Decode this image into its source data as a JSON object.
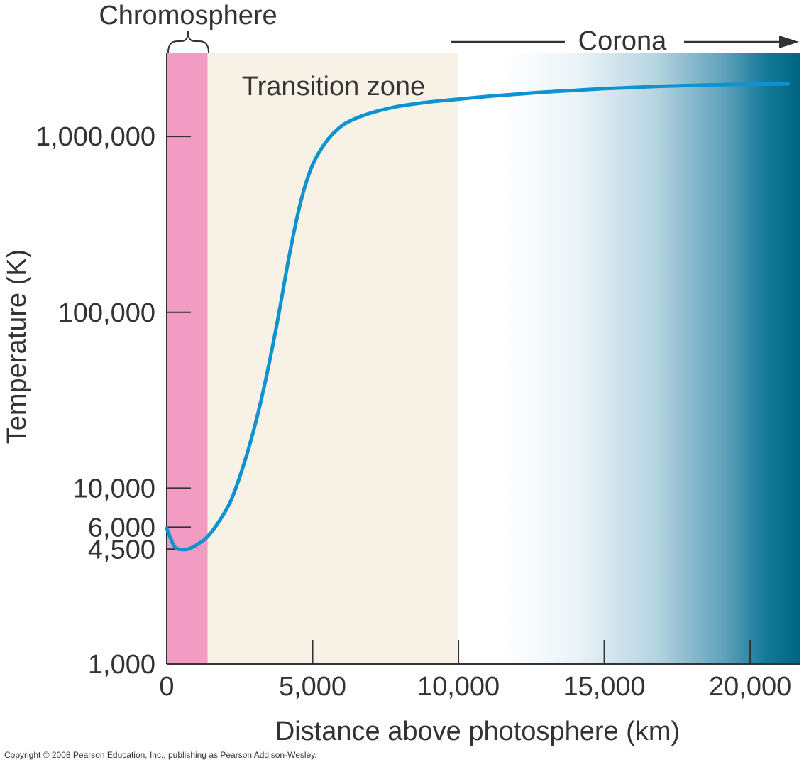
{
  "chart_data": {
    "type": "line",
    "xlabel": "Distance above photosphere (km)",
    "ylabel": "Temperature (K)",
    "y_scale": "log",
    "xlim": [
      0,
      21700
    ],
    "ylim": [
      1000,
      3000000
    ],
    "x_ticks": [
      {
        "value": 0,
        "label": "0"
      },
      {
        "value": 5000,
        "label": "5,000"
      },
      {
        "value": 10000,
        "label": "10,000"
      },
      {
        "value": 15000,
        "label": "15,000"
      },
      {
        "value": 20000,
        "label": "20,000"
      }
    ],
    "y_ticks": [
      {
        "value": 1000,
        "label": "1,000"
      },
      {
        "value": 4500,
        "label": "4,500"
      },
      {
        "value": 6000,
        "label": "6,000"
      },
      {
        "value": 10000,
        "label": "10,000"
      },
      {
        "value": 100000,
        "label": "100,000"
      },
      {
        "value": 1000000,
        "label": "1,000,000"
      }
    ],
    "regions": [
      {
        "name": "Chromosphere",
        "x_start": 0,
        "x_end": 1400,
        "color": "#f39cc3"
      },
      {
        "name": "Transition zone",
        "x_start": 1400,
        "x_end": 10000,
        "color": "#f8f1e6"
      },
      {
        "name": "Corona",
        "x_start": 10000,
        "x_end": 21700,
        "color_start": "#ffffff",
        "color_end": "#006a88"
      }
    ],
    "series": [
      {
        "color": "#0f93d0",
        "points": [
          [
            0,
            5900
          ],
          [
            250,
            4700
          ],
          [
            500,
            4480
          ],
          [
            800,
            4550
          ],
          [
            1100,
            4850
          ],
          [
            1400,
            5300
          ],
          [
            1800,
            6500
          ],
          [
            2200,
            8500
          ],
          [
            2600,
            13000
          ],
          [
            3000,
            22000
          ],
          [
            3400,
            42000
          ],
          [
            3800,
            90000
          ],
          [
            4200,
            210000
          ],
          [
            4600,
            430000
          ],
          [
            5000,
            690000
          ],
          [
            5500,
            950000
          ],
          [
            6000,
            1150000
          ],
          [
            6500,
            1270000
          ],
          [
            7000,
            1360000
          ],
          [
            7500,
            1430000
          ],
          [
            8000,
            1490000
          ],
          [
            9000,
            1570000
          ],
          [
            10000,
            1630000
          ],
          [
            11000,
            1690000
          ],
          [
            12000,
            1740000
          ],
          [
            13000,
            1790000
          ],
          [
            14000,
            1830000
          ],
          [
            15000,
            1870000
          ],
          [
            16000,
            1900000
          ],
          [
            17000,
            1930000
          ],
          [
            18000,
            1950000
          ],
          [
            19000,
            1970000
          ],
          [
            20000,
            1980000
          ],
          [
            21300,
            1990000
          ]
        ]
      }
    ],
    "annotations": {
      "chromosphere": "Chromosphere",
      "transition": "Transition zone",
      "corona": "Corona"
    }
  },
  "copyright": "Copyright © 2008 Pearson Education, Inc., publishing as Pearson Addison-Wesley."
}
